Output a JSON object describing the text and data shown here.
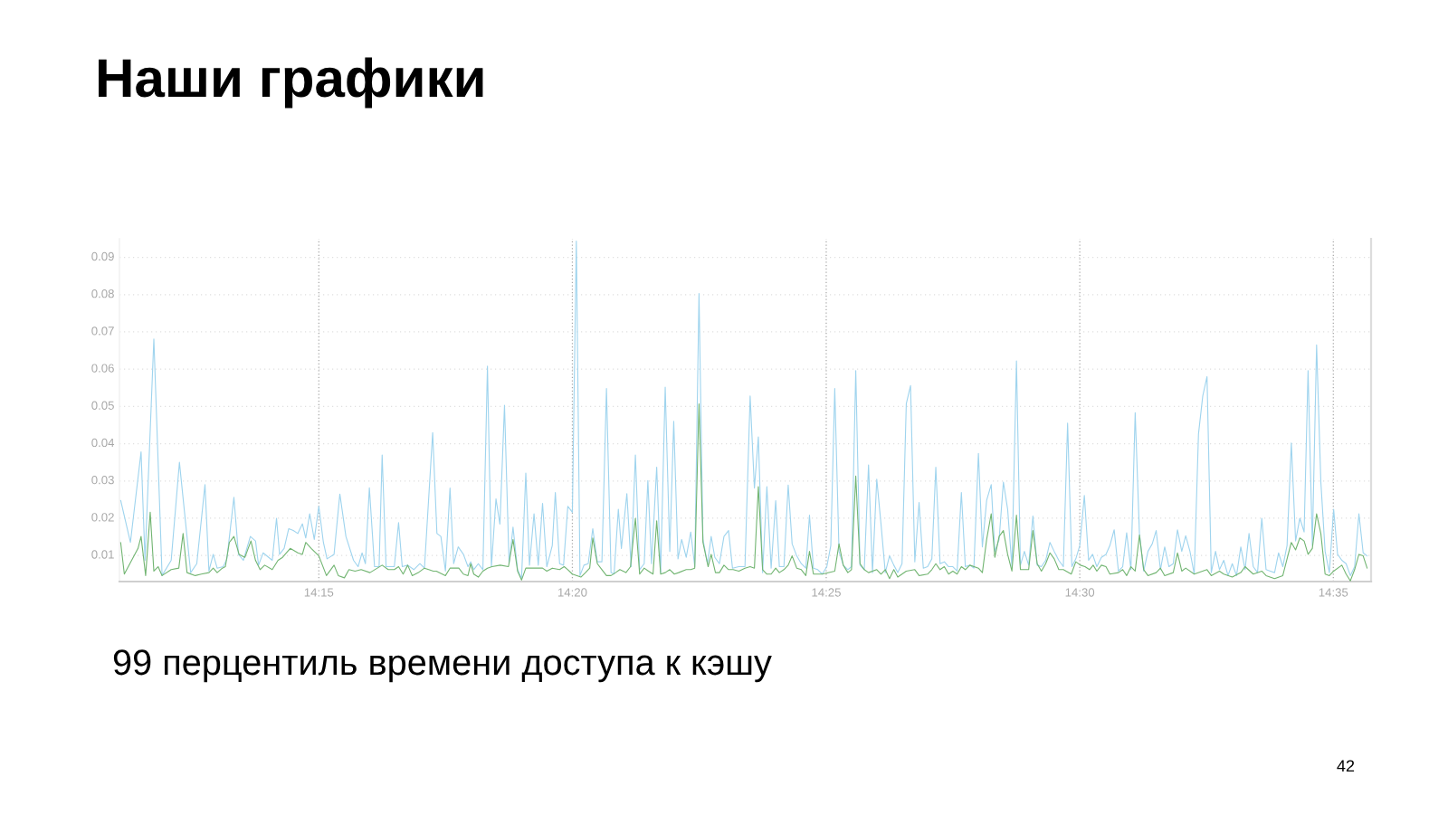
{
  "chart_data": {
    "type": "line",
    "title": "Наши графики",
    "annotations": [
      "99 перцентиль времени доступа к кэшу",
      "42"
    ],
    "xlim": [
      14.1845,
      14.5957
    ],
    "xticks": [
      {
        "value": 14.25,
        "label": "14:15"
      },
      {
        "value": 14.3333,
        "label": "14:20"
      },
      {
        "value": 14.4167,
        "label": "14:25"
      },
      {
        "value": 14.5,
        "label": "14:30"
      },
      {
        "value": 14.5833,
        "label": "14:35"
      }
    ],
    "ylim": [
      0.003,
      0.095
    ],
    "yticks": [
      0.01,
      0.02,
      0.03,
      0.04,
      0.05,
      0.06,
      0.07,
      0.08,
      0.09
    ],
    "grid": true,
    "line_style": "solid",
    "series": [
      {
        "color": "#9fd4ee",
        "x": [
          14.1849,
          14.1881,
          14.1916,
          14.1929,
          14.1958,
          14.1985,
          14.2015,
          14.2042,
          14.2079,
          14.2099,
          14.2126,
          14.2139,
          14.2153,
          14.2166,
          14.2186,
          14.2198,
          14.2221,
          14.2236,
          14.2252,
          14.2275,
          14.2292,
          14.2302,
          14.2317,
          14.2347,
          14.2361,
          14.2371,
          14.2386,
          14.2401,
          14.2416,
          14.2431,
          14.2446,
          14.2457,
          14.247,
          14.2485,
          14.25,
          14.2515,
          14.2527,
          14.255,
          14.2569,
          14.2589,
          14.2614,
          14.2629,
          14.2642,
          14.2653,
          14.2666,
          14.2683,
          14.2698,
          14.2708,
          14.2721,
          14.2748,
          14.2762,
          14.2774,
          14.2792,
          14.2812,
          14.2832,
          14.2847,
          14.2874,
          14.2888,
          14.2901,
          14.2916,
          14.2931,
          14.2943,
          14.2958,
          14.2975,
          14.299,
          14.2999,
          14.3009,
          14.3024,
          14.3039,
          14.3054,
          14.3067,
          14.3082,
          14.3095,
          14.311,
          14.3125,
          14.3138,
          14.3153,
          14.3166,
          14.318,
          14.3192,
          14.3207,
          14.3221,
          14.3235,
          14.3249,
          14.3267,
          14.3277,
          14.3291,
          14.3304,
          14.3318,
          14.3333,
          14.3346,
          14.3358,
          14.3371,
          14.3385,
          14.34,
          14.3415,
          14.343,
          14.3445,
          14.346,
          14.347,
          14.3484,
          14.3494,
          14.3512,
          14.3526,
          14.354,
          14.3554,
          14.3569,
          14.3581,
          14.3593,
          14.361,
          14.3623,
          14.3638,
          14.3653,
          14.3666,
          14.368,
          14.3692,
          14.3707,
          14.3722,
          14.3735,
          14.3749,
          14.3762,
          14.3777,
          14.3789,
          14.3801,
          14.3816,
          14.3831,
          14.3846,
          14.3859,
          14.388,
          14.39,
          14.3917,
          14.3931,
          14.3944,
          14.3958,
          14.3972,
          14.3986,
          14.4001,
          14.4013,
          14.4028,
          14.4042,
          14.4055,
          14.407,
          14.4085,
          14.41,
          14.4112,
          14.4125,
          14.4139,
          14.4154,
          14.4169,
          14.4182,
          14.4195,
          14.4209,
          14.4223,
          14.4238,
          14.425,
          14.4264,
          14.4278,
          14.4292,
          14.4306,
          14.4319,
          14.4333,
          14.4347,
          14.4361,
          14.4375,
          14.4389,
          14.4402,
          14.4416,
          14.443,
          14.4444,
          14.4458,
          14.4472,
          14.4486,
          14.45,
          14.4514,
          14.4527,
          14.4541,
          14.4555,
          14.4569,
          14.4583,
          14.4597,
          14.4611,
          14.4624,
          14.4639,
          14.4652,
          14.4667,
          14.468,
          14.4694,
          14.4709,
          14.4721,
          14.4735,
          14.4749,
          14.4763,
          14.4777,
          14.4792,
          14.4805,
          14.4818,
          14.4832,
          14.4846,
          14.486,
          14.4874,
          14.4888,
          14.4902,
          14.4916,
          14.4931,
          14.4946,
          14.496,
          14.4974,
          14.4987,
          14.5,
          14.5015,
          14.5029,
          14.5042,
          14.5056,
          14.5071,
          14.5086,
          14.5099,
          14.5113,
          14.5127,
          14.5141,
          14.5154,
          14.5168,
          14.5182,
          14.5196,
          14.521,
          14.5224,
          14.5238,
          14.5251,
          14.5265,
          14.5279,
          14.5293,
          14.5307,
          14.5321,
          14.5335,
          14.5348,
          14.5362,
          14.5376,
          14.539,
          14.5404,
          14.5418,
          14.5432,
          14.5446,
          14.5459,
          14.5473,
          14.5487,
          14.5501,
          14.5515,
          14.5529,
          14.5543,
          14.5556,
          14.557,
          14.5584,
          14.5598,
          14.5612,
          14.5626,
          14.564,
          14.5653,
          14.5667,
          14.5681,
          14.5695,
          14.5709,
          14.5723,
          14.5737,
          14.575,
          14.5764,
          14.5778,
          14.5792,
          14.5806,
          14.582,
          14.5834,
          14.5847,
          14.5861,
          14.5875,
          14.5889,
          14.5903,
          14.5917,
          14.5931,
          14.5944
        ],
        "values": [
          0.0248,
          0.0135,
          0.0378,
          0.0087,
          0.0681,
          0.0046,
          0.0087,
          0.035,
          0.0054,
          0.0078,
          0.029,
          0.0058,
          0.0103,
          0.0066,
          0.007,
          0.0091,
          0.0256,
          0.0103,
          0.0087,
          0.0151,
          0.0139,
          0.0074,
          0.0107,
          0.0087,
          0.02,
          0.0103,
          0.0119,
          0.0172,
          0.0167,
          0.0159,
          0.0185,
          0.0147,
          0.0212,
          0.0143,
          0.0232,
          0.0135,
          0.0091,
          0.0103,
          0.0265,
          0.0151,
          0.0087,
          0.007,
          0.0107,
          0.0078,
          0.0282,
          0.007,
          0.007,
          0.037,
          0.007,
          0.007,
          0.0188,
          0.007,
          0.0074,
          0.0062,
          0.0078,
          0.0066,
          0.043,
          0.0159,
          0.0151,
          0.0058,
          0.0281,
          0.0078,
          0.0123,
          0.0103,
          0.007,
          0.0083,
          0.0062,
          0.0078,
          0.0062,
          0.0608,
          0.007,
          0.0252,
          0.0184,
          0.0503,
          0.0078,
          0.0176,
          0.0062,
          0.0038,
          0.0321,
          0.0074,
          0.0212,
          0.0074,
          0.024,
          0.007,
          0.0127,
          0.0269,
          0.0078,
          0.0074,
          0.0232,
          0.0216,
          0.0944,
          0.0046,
          0.0074,
          0.0078,
          0.0172,
          0.0083,
          0.0083,
          0.0548,
          0.0054,
          0.005,
          0.0224,
          0.0119,
          0.0266,
          0.007,
          0.037,
          0.0062,
          0.0078,
          0.0301,
          0.0078,
          0.0337,
          0.0054,
          0.0552,
          0.0111,
          0.046,
          0.0091,
          0.0143,
          0.0095,
          0.0163,
          0.007,
          0.0803,
          0.0143,
          0.0078,
          0.0151,
          0.0095,
          0.0078,
          0.0151,
          0.0167,
          0.0066,
          0.007,
          0.007,
          0.0528,
          0.0281,
          0.0418,
          0.0054,
          0.0285,
          0.0066,
          0.0247,
          0.007,
          0.007,
          0.0289,
          0.0131,
          0.0099,
          0.0078,
          0.0066,
          0.0208,
          0.0066,
          0.0062,
          0.005,
          0.007,
          0.0127,
          0.0548,
          0.0111,
          0.0074,
          0.0062,
          0.007,
          0.0596,
          0.0074,
          0.0062,
          0.0343,
          0.0054,
          0.0305,
          0.0184,
          0.0054,
          0.0099,
          0.0074,
          0.0054,
          0.0078,
          0.0507,
          0.0556,
          0.0083,
          0.0242,
          0.0066,
          0.007,
          0.0091,
          0.0337,
          0.0078,
          0.0083,
          0.007,
          0.007,
          0.0058,
          0.0269,
          0.007,
          0.0074,
          0.0066,
          0.0374,
          0.0123,
          0.0248,
          0.029,
          0.0111,
          0.0143,
          0.0297,
          0.0224,
          0.007,
          0.0622,
          0.0074,
          0.0111,
          0.0074,
          0.0206,
          0.0074,
          0.007,
          0.0087,
          0.0135,
          0.0111,
          0.0087,
          0.007,
          0.0455,
          0.007,
          0.0091,
          0.0127,
          0.0261,
          0.0087,
          0.0103,
          0.007,
          0.0095,
          0.0103,
          0.0127,
          0.0169,
          0.0058,
          0.007,
          0.0161,
          0.0062,
          0.0483,
          0.0159,
          0.0058,
          0.0111,
          0.0131,
          0.0167,
          0.0062,
          0.0123,
          0.007,
          0.0078,
          0.0169,
          0.0111,
          0.0153,
          0.0111,
          0.005,
          0.0426,
          0.0528,
          0.058,
          0.0054,
          0.0111,
          0.0062,
          0.0087,
          0.0046,
          0.0078,
          0.0046,
          0.0123,
          0.0062,
          0.0159,
          0.007,
          0.0054,
          0.02,
          0.0062,
          0.0058,
          0.0054,
          0.0107,
          0.007,
          0.0127,
          0.0402,
          0.0139,
          0.02,
          0.0163,
          0.0596,
          0.0127,
          0.0665,
          0.0297,
          0.0111,
          0.0054,
          0.0224,
          0.0103,
          0.0087,
          0.0078,
          0.0046,
          0.007,
          0.0212,
          0.0107,
          0.0099
        ]
      },
      {
        "color": "#72b572",
        "x": [
          14.1849,
          14.1861,
          14.1906,
          14.1916,
          14.1931,
          14.1946,
          14.1958,
          14.1972,
          14.1985,
          14.2015,
          14.204,
          14.2054,
          14.2067,
          14.2094,
          14.2114,
          14.2139,
          14.2153,
          14.2166,
          14.2183,
          14.2193,
          14.2206,
          14.2221,
          14.2238,
          14.2257,
          14.2277,
          14.2292,
          14.2307,
          14.2322,
          14.2347,
          14.2366,
          14.2381,
          14.2406,
          14.2431,
          14.2446,
          14.2457,
          14.2475,
          14.25,
          14.2525,
          14.255,
          14.2564,
          14.2584,
          14.2599,
          14.2619,
          14.2639,
          14.2668,
          14.2708,
          14.2728,
          14.2748,
          14.2762,
          14.2777,
          14.2792,
          14.2807,
          14.2827,
          14.2847,
          14.2861,
          14.2876,
          14.2886,
          14.2916,
          14.2931,
          14.296,
          14.2975,
          14.299,
          14.2999,
          14.3009,
          14.3024,
          14.3039,
          14.3054,
          14.3069,
          14.3096,
          14.3123,
          14.3138,
          14.3153,
          14.3166,
          14.318,
          14.3207,
          14.3235,
          14.3249,
          14.3267,
          14.3291,
          14.3306,
          14.3318,
          14.3333,
          14.3361,
          14.3376,
          14.339,
          14.34,
          14.3415,
          14.343,
          14.3445,
          14.346,
          14.3475,
          14.3489,
          14.3509,
          14.3524,
          14.354,
          14.3554,
          14.3569,
          14.3583,
          14.3598,
          14.361,
          14.3623,
          14.3638,
          14.3653,
          14.3668,
          14.3682,
          14.3707,
          14.3722,
          14.3735,
          14.3749,
          14.3762,
          14.3779,
          14.3789,
          14.3803,
          14.3816,
          14.3831,
          14.3846,
          14.3861,
          14.388,
          14.39,
          14.3917,
          14.3931,
          14.3944,
          14.3958,
          14.3972,
          14.3986,
          14.4001,
          14.4013,
          14.4028,
          14.4042,
          14.4055,
          14.407,
          14.4085,
          14.41,
          14.4112,
          14.4125,
          14.4154,
          14.4195,
          14.4209,
          14.4223,
          14.4238,
          14.425,
          14.4264,
          14.4278,
          14.4292,
          14.4306,
          14.4333,
          14.4347,
          14.4361,
          14.4375,
          14.4389,
          14.4402,
          14.4416,
          14.443,
          14.4458,
          14.4472,
          14.45,
          14.4514,
          14.4527,
          14.4541,
          14.4555,
          14.4569,
          14.4583,
          14.4597,
          14.4611,
          14.4624,
          14.4639,
          14.4667,
          14.468,
          14.4694,
          14.4709,
          14.4721,
          14.4735,
          14.4749,
          14.4763,
          14.4777,
          14.4792,
          14.4805,
          14.4832,
          14.4846,
          14.486,
          14.4874,
          14.4888,
          14.4902,
          14.4916,
          14.4931,
          14.4946,
          14.4972,
          14.4987,
          14.5002,
          14.5017,
          14.5032,
          14.5044,
          14.5056,
          14.5071,
          14.5086,
          14.5099,
          14.5127,
          14.5141,
          14.5154,
          14.5168,
          14.5182,
          14.5196,
          14.521,
          14.5224,
          14.5251,
          14.5265,
          14.5279,
          14.5307,
          14.5321,
          14.5335,
          14.5348,
          14.5376,
          14.5418,
          14.5432,
          14.5459,
          14.5473,
          14.5501,
          14.5529,
          14.5543,
          14.557,
          14.5598,
          14.5612,
          14.564,
          14.5667,
          14.5681,
          14.5695,
          14.5709,
          14.5723,
          14.5737,
          14.575,
          14.5764,
          14.5778,
          14.5792,
          14.5806,
          14.582,
          14.5834,
          14.5861,
          14.5875,
          14.5889,
          14.5903,
          14.5917,
          14.5931,
          14.5944
        ],
        "values": [
          0.0135,
          0.005,
          0.0119,
          0.0151,
          0.0046,
          0.0216,
          0.0058,
          0.007,
          0.0046,
          0.0062,
          0.0066,
          0.0159,
          0.0054,
          0.0046,
          0.005,
          0.0054,
          0.0066,
          0.0054,
          0.0066,
          0.007,
          0.0135,
          0.0151,
          0.0103,
          0.0095,
          0.0139,
          0.0087,
          0.0062,
          0.0074,
          0.0062,
          0.0087,
          0.0095,
          0.0119,
          0.0107,
          0.0103,
          0.0135,
          0.0119,
          0.0099,
          0.0046,
          0.0074,
          0.0046,
          0.004,
          0.0062,
          0.0058,
          0.0062,
          0.0054,
          0.0074,
          0.0062,
          0.0062,
          0.007,
          0.005,
          0.0074,
          0.0046,
          0.0054,
          0.0066,
          0.0062,
          0.0058,
          0.0058,
          0.0046,
          0.0066,
          0.0066,
          0.005,
          0.0046,
          0.0078,
          0.005,
          0.0042,
          0.0058,
          0.0066,
          0.007,
          0.0074,
          0.007,
          0.0143,
          0.0058,
          0.0034,
          0.0066,
          0.0066,
          0.0066,
          0.0058,
          0.0066,
          0.0062,
          0.007,
          0.0062,
          0.005,
          0.0042,
          0.0054,
          0.0066,
          0.0147,
          0.0078,
          0.0062,
          0.0046,
          0.0046,
          0.0054,
          0.0062,
          0.0054,
          0.007,
          0.02,
          0.005,
          0.0066,
          0.0058,
          0.005,
          0.0193,
          0.005,
          0.0054,
          0.0062,
          0.005,
          0.0054,
          0.0062,
          0.0062,
          0.0066,
          0.0507,
          0.0135,
          0.007,
          0.0103,
          0.0054,
          0.0054,
          0.0074,
          0.0062,
          0.0062,
          0.0058,
          0.0066,
          0.007,
          0.0066,
          0.0285,
          0.0062,
          0.005,
          0.005,
          0.0066,
          0.0054,
          0.0062,
          0.0074,
          0.0099,
          0.0066,
          0.0062,
          0.0046,
          0.0111,
          0.005,
          0.005,
          0.0058,
          0.0131,
          0.0074,
          0.0054,
          0.0062,
          0.0313,
          0.0078,
          0.0062,
          0.0054,
          0.0062,
          0.005,
          0.0062,
          0.0038,
          0.0062,
          0.0042,
          0.005,
          0.0058,
          0.0062,
          0.0046,
          0.005,
          0.0062,
          0.0078,
          0.0062,
          0.007,
          0.005,
          0.0058,
          0.005,
          0.007,
          0.0062,
          0.0074,
          0.0066,
          0.0054,
          0.0143,
          0.0212,
          0.0095,
          0.0151,
          0.0167,
          0.0103,
          0.0058,
          0.0208,
          0.0062,
          0.0062,
          0.0167,
          0.0078,
          0.0058,
          0.0078,
          0.0107,
          0.0091,
          0.0062,
          0.0062,
          0.005,
          0.0083,
          0.0074,
          0.007,
          0.0062,
          0.0074,
          0.0058,
          0.0074,
          0.007,
          0.005,
          0.0054,
          0.0062,
          0.0046,
          0.007,
          0.0058,
          0.0155,
          0.0062,
          0.0046,
          0.0054,
          0.0066,
          0.0046,
          0.0054,
          0.0107,
          0.0058,
          0.0066,
          0.005,
          0.0062,
          0.0046,
          0.0058,
          0.005,
          0.0042,
          0.0054,
          0.007,
          0.005,
          0.0058,
          0.0046,
          0.0038,
          0.0046,
          0.0091,
          0.0135,
          0.0115,
          0.0147,
          0.0139,
          0.0103,
          0.0119,
          0.0212,
          0.0159,
          0.005,
          0.0046,
          0.0058,
          0.0074,
          0.005,
          0.0032,
          0.0062,
          0.0103,
          0.0099,
          0.0066
        ]
      }
    ]
  }
}
